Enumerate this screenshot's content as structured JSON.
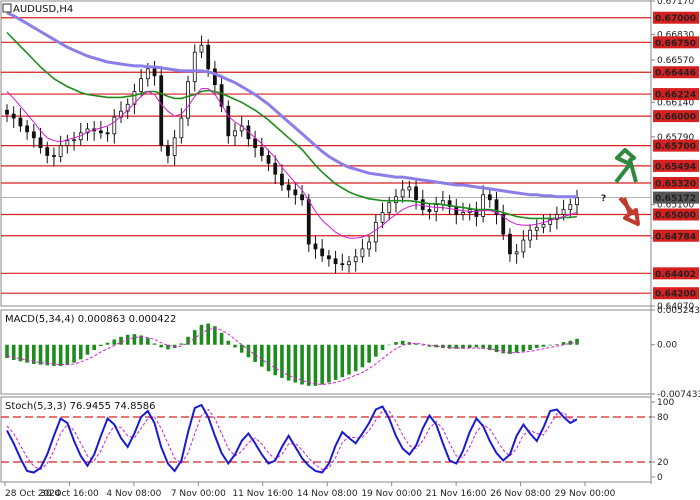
{
  "colors": {
    "hline_red": "#d62020",
    "tag_red": "#d62020",
    "tag_dark": "#555555",
    "candle": "#111111",
    "ma_fast": "#d41ad4",
    "ma_mid": "#1e8b1e",
    "ma_slow": "#8a7ee8",
    "macd_bar": "#1e8b1e",
    "macd_signal": "#d41ad4",
    "stoch_main": "#1a1ad4",
    "stoch_signal": "#d41ad4",
    "arrow_up": "#2e8b3e",
    "arrow_down": "#c0392b",
    "question": "#c0392b"
  },
  "chart_data": [
    {
      "type": "candlestick",
      "title": "AUDUSD,H4",
      "symbol": "AUDUSD",
      "timeframe": "H4",
      "ylim": [
        0.6407,
        0.6717
      ],
      "y_tick_labels": [
        "0.67170",
        "0.66830",
        "0.66570",
        "0.66140",
        "0.65790",
        "0.65100",
        "0.64760",
        "0.64070"
      ],
      "y_ticks": [
        0.6717,
        0.6683,
        0.6657,
        0.6614,
        0.6579,
        0.651,
        0.6476,
        0.6407
      ],
      "level_labels": [
        "0.67000",
        "0.66750",
        "0.66446",
        "0.66224",
        "0.66000",
        "0.65700",
        "0.65494",
        "0.65320",
        "0.65000",
        "0.64784",
        "0.64402",
        "0.64200"
      ],
      "levels": [
        0.67,
        0.6675,
        0.66446,
        0.66224,
        0.66,
        0.657,
        0.65494,
        0.6532,
        0.65,
        0.64784,
        0.64402,
        0.642
      ],
      "current_price_label": "0.65172",
      "current_price": 0.65172,
      "x_labels": [
        "28 Oct 2024",
        "30 Oct 16:00",
        "4 Nov 08:00",
        "7 Nov 00:00",
        "11 Nov 16:00",
        "14 Nov 08:00",
        "19 Nov 00:00",
        "21 Nov 16:00",
        "26 Nov 08:00",
        "29 Nov 00:00"
      ],
      "close": [
        0.6602,
        0.6598,
        0.659,
        0.6584,
        0.6578,
        0.6568,
        0.656,
        0.6559,
        0.657,
        0.6575,
        0.6576,
        0.6583,
        0.6587,
        0.6585,
        0.6583,
        0.6582,
        0.6599,
        0.6605,
        0.6612,
        0.6625,
        0.6638,
        0.6648,
        0.6641,
        0.657,
        0.656,
        0.6578,
        0.6598,
        0.6635,
        0.6665,
        0.6672,
        0.6648,
        0.6632,
        0.661,
        0.658,
        0.6585,
        0.659,
        0.6577,
        0.6568,
        0.656,
        0.6552,
        0.6541,
        0.653,
        0.6525,
        0.652,
        0.6515,
        0.647,
        0.6465,
        0.6458,
        0.6455,
        0.645,
        0.6449,
        0.6452,
        0.6457,
        0.6465,
        0.6472,
        0.6492,
        0.6502,
        0.6512,
        0.6518,
        0.6525,
        0.6528,
        0.6515,
        0.6505,
        0.6503,
        0.651,
        0.6514,
        0.6508,
        0.65,
        0.6502,
        0.6505,
        0.6498,
        0.652,
        0.6515,
        0.65,
        0.648,
        0.646,
        0.6462,
        0.6474,
        0.6484,
        0.6487,
        0.649,
        0.6495,
        0.65,
        0.6505,
        0.651,
        0.6517
      ],
      "ma_fast": [
        0.6625,
        0.6618,
        0.661,
        0.6602,
        0.6594,
        0.6585,
        0.6578,
        0.6575,
        0.6574,
        0.6576,
        0.6578,
        0.658,
        0.6584,
        0.6586,
        0.6588,
        0.659,
        0.6594,
        0.66,
        0.6606,
        0.6613,
        0.662,
        0.6625,
        0.6622,
        0.6612,
        0.6605,
        0.66,
        0.6602,
        0.661,
        0.662,
        0.6628,
        0.6628,
        0.6622,
        0.6612,
        0.66,
        0.6594,
        0.659,
        0.6584,
        0.6578,
        0.6572,
        0.6565,
        0.6558,
        0.6548,
        0.654,
        0.6532,
        0.6525,
        0.6514,
        0.6503,
        0.6494,
        0.6488,
        0.6482,
        0.6478,
        0.6476,
        0.6476,
        0.6477,
        0.648,
        0.6484,
        0.6489,
        0.6495,
        0.65,
        0.6505,
        0.6508,
        0.651,
        0.6509,
        0.6508,
        0.6507,
        0.6507,
        0.6506,
        0.6505,
        0.6504,
        0.6503,
        0.6503,
        0.6504,
        0.6504,
        0.6502,
        0.6498,
        0.6493,
        0.649,
        0.6489,
        0.6489,
        0.649,
        0.6492,
        0.6494,
        0.6496,
        0.6498,
        0.65,
        0.6502
      ],
      "ma_mid": [
        0.6685,
        0.6678,
        0.6671,
        0.6664,
        0.6657,
        0.665,
        0.6644,
        0.6638,
        0.6634,
        0.663,
        0.6627,
        0.6624,
        0.6622,
        0.6621,
        0.662,
        0.6619,
        0.6619,
        0.6619,
        0.662,
        0.6621,
        0.6623,
        0.6625,
        0.6625,
        0.6623,
        0.662,
        0.6618,
        0.6618,
        0.662,
        0.6622,
        0.6625,
        0.6626,
        0.6625,
        0.6623,
        0.662,
        0.6617,
        0.6614,
        0.661,
        0.6606,
        0.6601,
        0.6596,
        0.659,
        0.6584,
        0.6578,
        0.6572,
        0.6566,
        0.6558,
        0.655,
        0.6543,
        0.6537,
        0.6531,
        0.6527,
        0.6523,
        0.652,
        0.6518,
        0.6516,
        0.6515,
        0.6514,
        0.6514,
        0.6514,
        0.6514,
        0.6514,
        0.6513,
        0.6512,
        0.6511,
        0.6511,
        0.651,
        0.6509,
        0.6508,
        0.6507,
        0.6506,
        0.6505,
        0.6505,
        0.6505,
        0.6504,
        0.6502,
        0.65,
        0.6498,
        0.6497,
        0.6496,
        0.6496,
        0.6496,
        0.6496,
        0.6496,
        0.6497,
        0.6497,
        0.6498
      ],
      "ma_slow": [
        0.6705,
        0.6702,
        0.6698,
        0.6694,
        0.669,
        0.6686,
        0.6682,
        0.6678,
        0.6674,
        0.667,
        0.6667,
        0.6664,
        0.6661,
        0.6659,
        0.6657,
        0.6655,
        0.6654,
        0.6653,
        0.6652,
        0.6651,
        0.6651,
        0.665,
        0.665,
        0.6649,
        0.6648,
        0.6647,
        0.6646,
        0.6646,
        0.6646,
        0.6646,
        0.6645,
        0.6643,
        0.664,
        0.6637,
        0.6634,
        0.663,
        0.6626,
        0.6622,
        0.6617,
        0.6612,
        0.6606,
        0.66,
        0.6594,
        0.6588,
        0.6582,
        0.6576,
        0.657,
        0.6564,
        0.6559,
        0.6555,
        0.6551,
        0.6548,
        0.6546,
        0.6544,
        0.6542,
        0.6541,
        0.654,
        0.6539,
        0.6538,
        0.6538,
        0.6537,
        0.6536,
        0.6535,
        0.6534,
        0.6533,
        0.6532,
        0.6531,
        0.653,
        0.653,
        0.6529,
        0.6528,
        0.6527,
        0.6526,
        0.6525,
        0.6524,
        0.6523,
        0.6522,
        0.6521,
        0.652,
        0.652,
        0.6519,
        0.6519,
        0.6518,
        0.6518,
        0.6518,
        0.6518
      ]
    },
    {
      "type": "bar",
      "title": "MACD(5,34,4) 0.000863 0.000422",
      "ylim": [
        -0.007433,
        0.005243
      ],
      "y_tick_labels": [
        "0.005243",
        "0.00",
        "-0.007433"
      ],
      "y_ticks": [
        0.005243,
        0.0,
        -0.007433
      ],
      "hist": [
        -0.002,
        -0.0023,
        -0.0025,
        -0.0027,
        -0.0029,
        -0.003,
        -0.0031,
        -0.0032,
        -0.0032,
        -0.003,
        -0.0027,
        -0.0022,
        -0.0015,
        -0.0008,
        -0.0002,
        0.0003,
        0.0008,
        0.0012,
        0.0015,
        0.0016,
        0.0014,
        0.001,
        0.0002,
        -0.0004,
        -0.0007,
        -0.0005,
        0.0002,
        0.0012,
        0.0022,
        0.003,
        0.0032,
        0.0028,
        0.0018,
        0.0006,
        -0.0004,
        -0.0012,
        -0.0019,
        -0.0026,
        -0.0033,
        -0.004,
        -0.0046,
        -0.005,
        -0.0054,
        -0.0057,
        -0.006,
        -0.0062,
        -0.0062,
        -0.006,
        -0.0057,
        -0.0053,
        -0.0049,
        -0.0045,
        -0.004,
        -0.0034,
        -0.0027,
        -0.0018,
        -0.0008,
        0.0,
        0.0004,
        0.0006,
        0.0004,
        0.0002,
        -0.0001,
        -0.0003,
        -0.0004,
        -0.0005,
        -0.0006,
        -0.0006,
        -0.0006,
        -0.0005,
        -0.0004,
        -0.0006,
        -0.0008,
        -0.0011,
        -0.0013,
        -0.0014,
        -0.0012,
        -0.001,
        -0.0008,
        -0.0005,
        -0.0003,
        -0.0001,
        0.0001,
        0.0004,
        0.0006,
        0.0009
      ],
      "signal": [
        -0.0017,
        -0.0019,
        -0.0021,
        -0.0023,
        -0.0025,
        -0.0027,
        -0.0028,
        -0.0029,
        -0.003,
        -0.003,
        -0.0029,
        -0.0026,
        -0.0022,
        -0.0017,
        -0.0011,
        -0.0006,
        -0.0001,
        0.0004,
        0.0008,
        0.0011,
        0.0012,
        0.0011,
        0.0008,
        0.0003,
        -0.0001,
        -0.0003,
        -0.0002,
        0.0003,
        0.001,
        0.0017,
        0.0023,
        0.0025,
        0.0022,
        0.0016,
        0.0008,
        0.0,
        -0.0008,
        -0.0015,
        -0.0022,
        -0.0029,
        -0.0035,
        -0.0041,
        -0.0046,
        -0.005,
        -0.0054,
        -0.0057,
        -0.0059,
        -0.006,
        -0.0059,
        -0.0057,
        -0.0054,
        -0.005,
        -0.0046,
        -0.0042,
        -0.0036,
        -0.0029,
        -0.0021,
        -0.0013,
        -0.0006,
        -0.0001,
        0.0002,
        0.0002,
        0.0001,
        -0.0001,
        -0.0002,
        -0.0003,
        -0.0004,
        -0.0005,
        -0.0005,
        -0.0005,
        -0.0005,
        -0.0005,
        -0.0006,
        -0.0008,
        -0.001,
        -0.0012,
        -0.0012,
        -0.0011,
        -0.001,
        -0.0008,
        -0.0006,
        -0.0004,
        -0.0002,
        0.0,
        0.0002,
        0.0004
      ]
    },
    {
      "type": "line",
      "title": "Stoch(5,3,3) 76.9455 74.8586",
      "ylim": [
        0,
        100
      ],
      "y_tick_labels": [
        "100",
        "80",
        "20",
        "0"
      ],
      "y_ticks": [
        100,
        80,
        20,
        0
      ],
      "dashed_levels": [
        80,
        20
      ],
      "k": [
        62,
        45,
        25,
        8,
        6,
        12,
        30,
        55,
        78,
        72,
        48,
        28,
        15,
        30,
        55,
        78,
        70,
        52,
        40,
        58,
        80,
        88,
        72,
        40,
        18,
        8,
        22,
        60,
        92,
        96,
        80,
        55,
        32,
        18,
        30,
        48,
        58,
        45,
        30,
        18,
        22,
        40,
        55,
        40,
        25,
        15,
        8,
        6,
        18,
        42,
        60,
        52,
        45,
        58,
        72,
        90,
        94,
        78,
        55,
        38,
        30,
        42,
        65,
        82,
        70,
        45,
        22,
        18,
        35,
        60,
        78,
        68,
        48,
        32,
        22,
        30,
        55,
        70,
        58,
        48,
        66,
        88,
        90,
        80,
        72,
        77
      ],
      "d": [
        68,
        58,
        42,
        26,
        14,
        10,
        18,
        35,
        58,
        70,
        62,
        45,
        28,
        22,
        35,
        55,
        68,
        66,
        55,
        52,
        65,
        78,
        80,
        65,
        45,
        25,
        18,
        32,
        58,
        82,
        90,
        78,
        58,
        38,
        28,
        34,
        46,
        52,
        44,
        32,
        24,
        30,
        44,
        45,
        36,
        25,
        16,
        10,
        12,
        26,
        46,
        54,
        52,
        53,
        62,
        76,
        88,
        88,
        74,
        56,
        42,
        38,
        48,
        65,
        74,
        64,
        45,
        28,
        26,
        40,
        60,
        70,
        64,
        50,
        36,
        28,
        38,
        56,
        62,
        58,
        56,
        70,
        84,
        86,
        78,
        75
      ]
    }
  ],
  "annotations": {
    "question_mark": "?"
  }
}
